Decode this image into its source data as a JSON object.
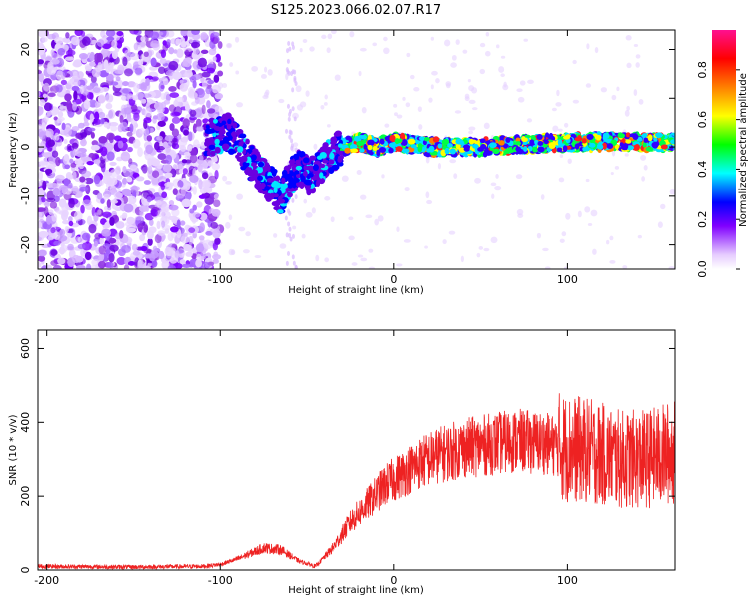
{
  "title": "S125.2023.066.02.07.R17",
  "chart_data": [
    {
      "type": "heatmap",
      "xlabel": "Height of straight line (km)",
      "ylabel": "Frequency (Hz)",
      "xlim": [
        -205,
        162
      ],
      "ylim": [
        -25,
        24
      ],
      "xticks": [
        -200,
        -100,
        0,
        100
      ],
      "yticks": [
        -20,
        -10,
        0,
        10,
        20
      ],
      "colorbar": {
        "label": "Normalized spectral amplitude",
        "range": [
          0.0,
          0.96
        ],
        "ticks": [
          "0.0",
          "0.2",
          "0.4",
          "0.6",
          "0.8"
        ],
        "colormap": [
          "#ffffff",
          "#e6ccff",
          "#8000ff",
          "#0000ff",
          "#00ffff",
          "#00ff00",
          "#ffff00",
          "#ff8000",
          "#ff0000",
          "#ff00ff"
        ]
      },
      "signal_track": {
        "description_points": [
          [
            -105,
            2
          ],
          [
            -95,
            3
          ],
          [
            -85,
            -2
          ],
          [
            -75,
            -6
          ],
          [
            -65,
            -10
          ],
          [
            -55,
            -4
          ],
          [
            -48,
            -6
          ],
          [
            -40,
            -3
          ],
          [
            -30,
            0
          ],
          [
            -20,
            1
          ],
          [
            -10,
            0
          ],
          [
            0,
            1
          ],
          [
            20,
            0
          ],
          [
            50,
            0
          ],
          [
            100,
            1
          ],
          [
            160,
            1
          ]
        ]
      }
    },
    {
      "type": "line",
      "xlabel": "Height of straight line (km)",
      "ylabel": "SNR (10 * v/v)",
      "xlim": [
        -205,
        162
      ],
      "ylim": [
        0,
        650
      ],
      "xticks": [
        -200,
        -100,
        0,
        100
      ],
      "yticks": [
        0,
        200,
        400,
        600
      ],
      "series": [
        {
          "color": "#ee2222",
          "envelope": [
            [
              -205,
              10
            ],
            [
              -150,
              8
            ],
            [
              -110,
              10
            ],
            [
              -100,
              15
            ],
            [
              -90,
              30
            ],
            [
              -75,
              60
            ],
            [
              -65,
              55
            ],
            [
              -55,
              25
            ],
            [
              -45,
              10
            ],
            [
              -35,
              60
            ],
            [
              -25,
              130
            ],
            [
              -15,
              180
            ],
            [
              -5,
              230
            ],
            [
              5,
              260
            ],
            [
              15,
              290
            ],
            [
              25,
              310
            ],
            [
              40,
              330
            ],
            [
              55,
              340
            ],
            [
              70,
              350
            ],
            [
              85,
              345
            ],
            [
              100,
              330
            ],
            [
              115,
              320
            ],
            [
              130,
              300
            ],
            [
              145,
              300
            ],
            [
              162,
              320
            ]
          ]
        }
      ]
    }
  ]
}
